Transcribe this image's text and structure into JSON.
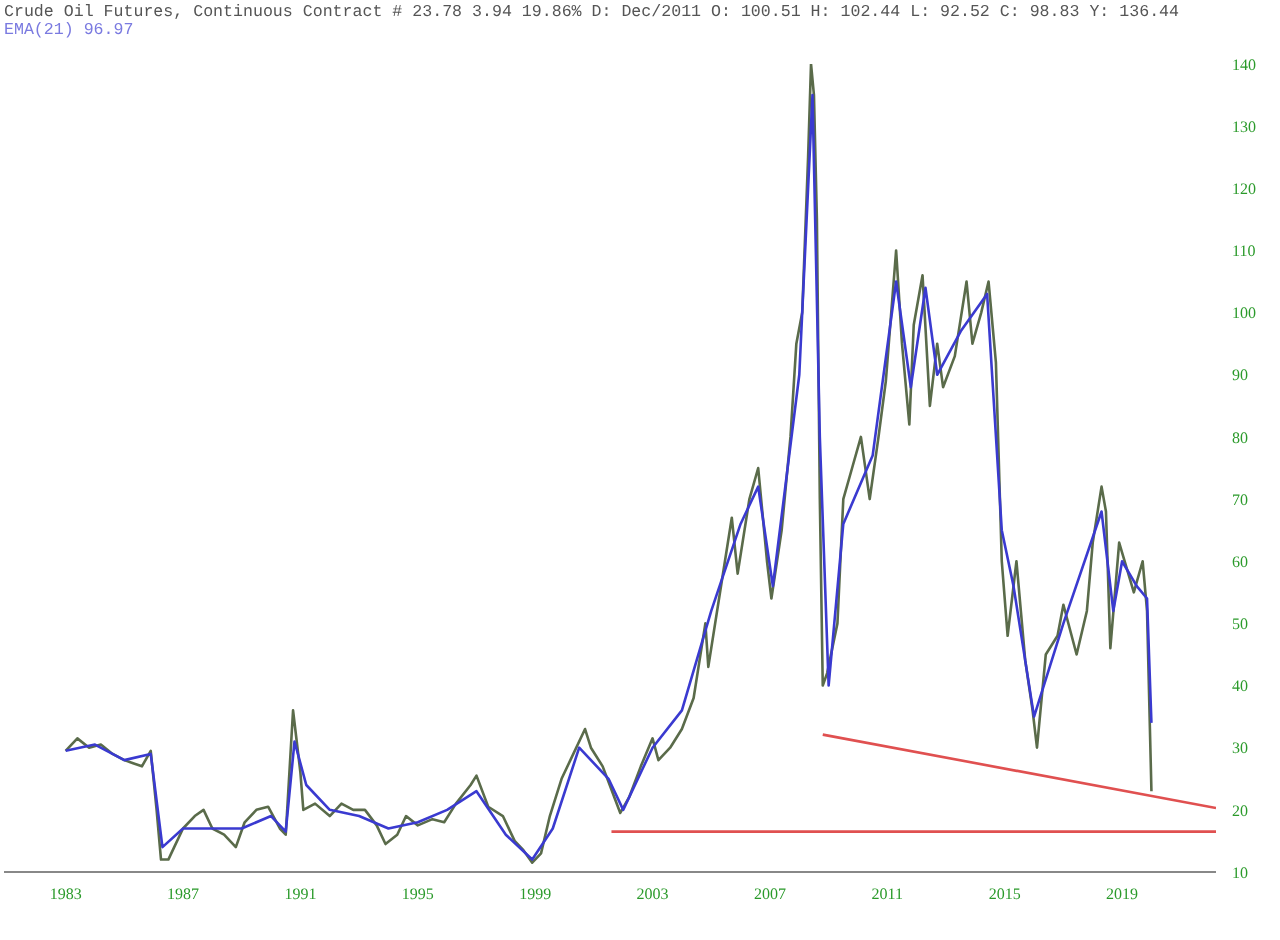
{
  "chart_data": {
    "type": "line",
    "title": "Crude Oil Futures, Continuous Contract # 23.78 3.94 19.86% D: Dec/2011 O: 100.51 H: 102.44 L: 92.52 C: 98.83 Y: 136.44",
    "subtitle": "EMA(21) 96.97",
    "xlim": [
      1980.9,
      2022.2
    ],
    "xticks": [
      1983,
      1987,
      1991,
      1995,
      1999,
      2003,
      2007,
      2011,
      2015,
      2019
    ],
    "ylim": [
      10,
      140
    ],
    "yticks": [
      10,
      20,
      30,
      40,
      50,
      60,
      70,
      80,
      90,
      100,
      110,
      120,
      130,
      140
    ],
    "grid": false,
    "legend": false,
    "line_style": "solid",
    "series": [
      {
        "color": "#5a6b4a",
        "x": [
          1983.0,
          1983.4,
          1983.8,
          1984.2,
          1984.6,
          1985.0,
          1985.3,
          1985.6,
          1985.9,
          1986.1,
          1986.25,
          1986.5,
          1986.7,
          1987.0,
          1987.4,
          1987.7,
          1988.0,
          1988.4,
          1988.8,
          1989.1,
          1989.5,
          1989.9,
          1990.3,
          1990.5,
          1990.75,
          1990.85,
          1991.0,
          1991.1,
          1991.5,
          1992.0,
          1992.4,
          1992.8,
          1993.2,
          1993.6,
          1993.9,
          1994.3,
          1994.6,
          1995.0,
          1995.5,
          1995.9,
          1996.3,
          1996.8,
          1997.0,
          1997.4,
          1997.9,
          1998.3,
          1998.6,
          1998.9,
          1999.2,
          1999.5,
          1999.9,
          2000.2,
          2000.7,
          2000.9,
          2001.3,
          2001.7,
          2001.9,
          2002.2,
          2002.6,
          2003.0,
          2003.2,
          2003.6,
          2004.0,
          2004.4,
          2004.8,
          2004.9,
          2005.3,
          2005.7,
          2005.9,
          2006.3,
          2006.6,
          2006.9,
          2007.05,
          2007.4,
          2007.7,
          2007.9,
          2008.1,
          2008.3,
          2008.4,
          2008.5,
          2008.6,
          2008.7,
          2008.8,
          2008.95,
          2009.3,
          2009.5,
          2009.8,
          2010.1,
          2010.4,
          2010.7,
          2010.95,
          2011.3,
          2011.5,
          2011.75,
          2011.9,
          2012.2,
          2012.45,
          2012.7,
          2012.9,
          2013.3,
          2013.7,
          2013.9,
          2014.2,
          2014.45,
          2014.7,
          2014.9,
          2015.1,
          2015.4,
          2015.7,
          2015.95,
          2016.1,
          2016.4,
          2016.8,
          2017.0,
          2017.45,
          2017.8,
          2018.0,
          2018.3,
          2018.45,
          2018.6,
          2018.9,
          2019.4,
          2019.7,
          2019.85,
          2020.0
        ],
        "values": [
          29.5,
          31.5,
          30,
          30.5,
          29,
          28,
          27.5,
          27,
          29.5,
          20,
          12,
          12,
          14,
          17,
          19,
          20,
          17,
          16,
          14,
          18,
          20,
          20.5,
          17,
          16,
          36,
          32,
          26,
          20,
          21,
          19,
          21,
          20,
          20,
          17.5,
          14.5,
          16,
          19,
          17.5,
          18.5,
          18,
          21,
          24,
          25.5,
          20.5,
          19,
          15,
          13.5,
          11.5,
          13,
          19,
          25,
          28,
          33,
          30,
          27,
          22,
          19.5,
          22,
          27,
          31.5,
          28,
          30,
          33,
          38,
          50,
          43,
          55,
          67,
          58,
          70,
          75,
          60,
          54,
          65,
          80,
          95,
          100,
          125,
          140,
          135,
          115,
          70,
          40,
          42,
          50,
          70,
          75,
          80,
          70,
          80,
          89,
          110,
          95,
          82,
          98,
          106,
          85,
          95,
          88,
          93,
          105,
          95,
          100,
          105,
          92,
          60,
          48,
          60,
          44,
          36,
          30,
          45,
          48,
          53,
          45,
          52,
          63,
          72,
          68,
          46,
          63,
          55,
          60,
          52,
          23
        ]
      },
      {
        "color": "#3a3ad0",
        "x": [
          1983.0,
          1984.0,
          1985.0,
          1985.9,
          1986.3,
          1987.0,
          1988.0,
          1989.0,
          1990.0,
          1990.5,
          1990.8,
          1991.2,
          1992.0,
          1993.0,
          1994.0,
          1995.0,
          1996.0,
          1997.0,
          1998.0,
          1998.9,
          1999.6,
          2000.5,
          2001.5,
          2002.0,
          2003.0,
          2004.0,
          2005.0,
          2006.0,
          2006.6,
          2007.1,
          2008.0,
          2008.45,
          2008.7,
          2009.0,
          2009.5,
          2010.5,
          2011.3,
          2011.8,
          2012.3,
          2012.7,
          2013.5,
          2014.4,
          2014.9,
          2015.3,
          2016.0,
          2017.0,
          2018.3,
          2018.7,
          2019.0,
          2019.5,
          2019.85,
          2020.0
        ],
        "values": [
          29.5,
          30.5,
          28,
          29,
          14,
          17,
          17,
          17,
          19,
          16.5,
          31,
          24,
          20,
          19,
          17,
          18,
          20,
          23,
          16,
          12,
          17,
          30,
          25,
          20,
          30,
          36,
          52,
          66,
          72,
          56,
          90,
          135,
          80,
          40,
          66,
          77,
          105,
          88,
          104,
          90,
          97,
          103,
          65,
          56,
          35,
          50,
          68,
          52,
          60,
          56,
          54,
          34
        ]
      },
      {
        "type": "line",
        "color": "#e05050",
        "x": [
          2008.8,
          2022.2
        ],
        "values": [
          32.1,
          20.3
        ]
      },
      {
        "type": "line",
        "color": "#e05050",
        "x": [
          2001.6,
          2022.2
        ],
        "values": [
          16.5,
          16.5
        ]
      }
    ]
  }
}
